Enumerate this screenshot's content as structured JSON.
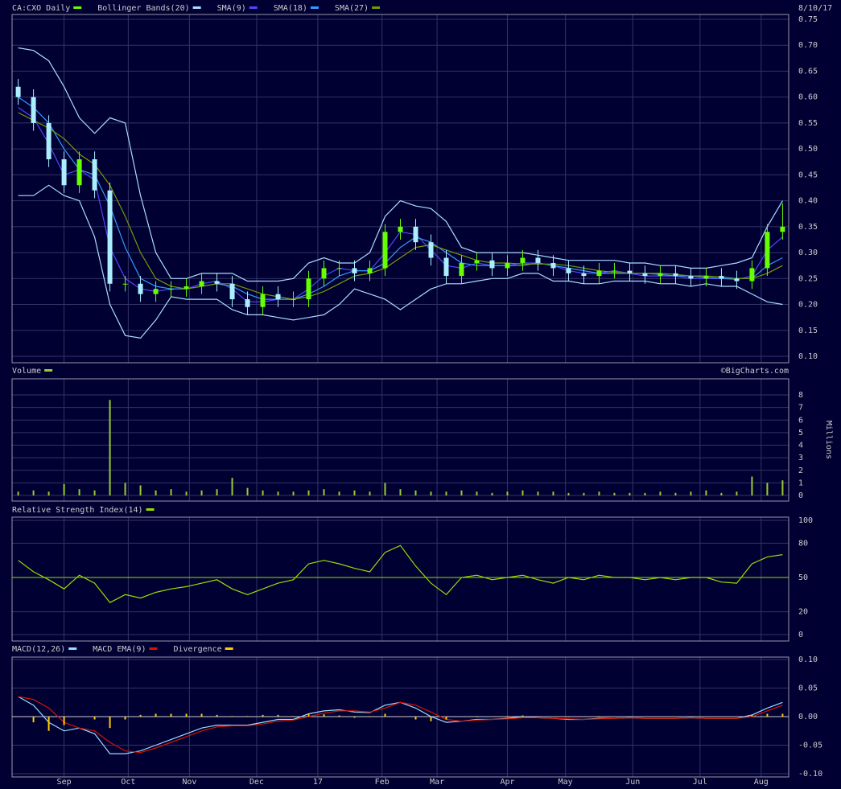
{
  "chart_data": [
    {
      "type": "candlestick",
      "title": "CA:CXO Daily",
      "color": "#66ff00",
      "down_color": "#aaeeff",
      "date": "8/10/17",
      "credit": "©BigCharts.com",
      "x": [
        0,
        5,
        10,
        15,
        20,
        25,
        30,
        35,
        40,
        45,
        50,
        55,
        60,
        65,
        70,
        75,
        80,
        85,
        90,
        95,
        100,
        105,
        110,
        115,
        120,
        125,
        130,
        135,
        140,
        145,
        150,
        155,
        160,
        165,
        170,
        175,
        180,
        185,
        190,
        195,
        200,
        205,
        210,
        215,
        220,
        225,
        230,
        235,
        240,
        245,
        250
      ],
      "xlim": [
        -2,
        252
      ],
      "open": [
        0.62,
        0.6,
        0.55,
        0.48,
        0.43,
        0.48,
        0.42,
        0.24,
        0.24,
        0.22,
        0.23,
        0.23,
        0.235,
        0.245,
        0.24,
        0.21,
        0.195,
        0.22,
        0.21,
        0.21,
        0.25,
        0.27,
        0.27,
        0.26,
        0.27,
        0.34,
        0.35,
        0.32,
        0.29,
        0.255,
        0.28,
        0.285,
        0.27,
        0.28,
        0.29,
        0.28,
        0.27,
        0.26,
        0.255,
        0.265,
        0.265,
        0.26,
        0.255,
        0.26,
        0.255,
        0.25,
        0.255,
        0.25,
        0.245,
        0.27,
        0.34
      ],
      "high": [
        0.635,
        0.615,
        0.565,
        0.495,
        0.495,
        0.495,
        0.435,
        0.255,
        0.255,
        0.245,
        0.245,
        0.25,
        0.26,
        0.26,
        0.255,
        0.225,
        0.235,
        0.235,
        0.225,
        0.265,
        0.285,
        0.285,
        0.285,
        0.285,
        0.355,
        0.365,
        0.365,
        0.335,
        0.305,
        0.295,
        0.3,
        0.3,
        0.295,
        0.305,
        0.305,
        0.295,
        0.285,
        0.275,
        0.28,
        0.28,
        0.28,
        0.275,
        0.275,
        0.275,
        0.27,
        0.27,
        0.27,
        0.265,
        0.285,
        0.355,
        0.395
      ],
      "low": [
        0.585,
        0.535,
        0.465,
        0.415,
        0.415,
        0.405,
        0.225,
        0.225,
        0.205,
        0.205,
        0.215,
        0.215,
        0.22,
        0.225,
        0.195,
        0.18,
        0.18,
        0.195,
        0.195,
        0.195,
        0.235,
        0.255,
        0.245,
        0.245,
        0.255,
        0.325,
        0.305,
        0.275,
        0.24,
        0.24,
        0.265,
        0.255,
        0.255,
        0.265,
        0.265,
        0.255,
        0.245,
        0.24,
        0.24,
        0.25,
        0.245,
        0.24,
        0.24,
        0.24,
        0.235,
        0.235,
        0.235,
        0.23,
        0.23,
        0.255,
        0.325
      ],
      "close": [
        0.6,
        0.55,
        0.48,
        0.43,
        0.48,
        0.42,
        0.24,
        0.24,
        0.22,
        0.23,
        0.23,
        0.235,
        0.245,
        0.24,
        0.21,
        0.195,
        0.22,
        0.21,
        0.21,
        0.25,
        0.27,
        0.27,
        0.26,
        0.27,
        0.34,
        0.35,
        0.32,
        0.29,
        0.255,
        0.28,
        0.285,
        0.27,
        0.28,
        0.29,
        0.28,
        0.27,
        0.26,
        0.255,
        0.265,
        0.265,
        0.26,
        0.255,
        0.26,
        0.255,
        0.25,
        0.255,
        0.25,
        0.245,
        0.27,
        0.34,
        0.35
      ],
      "bands": {
        "name": "Bollinger Bands(20)",
        "color": "#aaddff",
        "upper": [
          0.695,
          0.69,
          0.67,
          0.62,
          0.56,
          0.53,
          0.56,
          0.55,
          0.41,
          0.3,
          0.25,
          0.25,
          0.26,
          0.26,
          0.26,
          0.245,
          0.245,
          0.245,
          0.25,
          0.28,
          0.29,
          0.28,
          0.28,
          0.3,
          0.37,
          0.4,
          0.39,
          0.385,
          0.36,
          0.31,
          0.3,
          0.3,
          0.3,
          0.3,
          0.295,
          0.29,
          0.285,
          0.285,
          0.285,
          0.285,
          0.28,
          0.28,
          0.275,
          0.275,
          0.27,
          0.27,
          0.275,
          0.28,
          0.29,
          0.35,
          0.4
        ],
        "lower": [
          0.41,
          0.41,
          0.43,
          0.41,
          0.4,
          0.33,
          0.2,
          0.14,
          0.135,
          0.17,
          0.215,
          0.21,
          0.21,
          0.21,
          0.19,
          0.18,
          0.18,
          0.175,
          0.17,
          0.175,
          0.18,
          0.2,
          0.23,
          0.22,
          0.21,
          0.19,
          0.21,
          0.23,
          0.24,
          0.24,
          0.245,
          0.25,
          0.25,
          0.26,
          0.26,
          0.245,
          0.245,
          0.24,
          0.24,
          0.245,
          0.245,
          0.245,
          0.24,
          0.24,
          0.235,
          0.24,
          0.235,
          0.235,
          0.22,
          0.205,
          0.2
        ]
      },
      "series": [
        {
          "name": "SMA(9)",
          "color": "#5544ff",
          "values": [
            0.58,
            0.56,
            0.51,
            0.45,
            0.46,
            0.44,
            0.31,
            0.25,
            0.23,
            0.225,
            0.23,
            0.23,
            0.24,
            0.245,
            0.23,
            0.205,
            0.205,
            0.21,
            0.21,
            0.23,
            0.255,
            0.27,
            0.265,
            0.265,
            0.3,
            0.34,
            0.335,
            0.305,
            0.275,
            0.27,
            0.28,
            0.275,
            0.275,
            0.28,
            0.28,
            0.275,
            0.265,
            0.26,
            0.26,
            0.265,
            0.26,
            0.255,
            0.255,
            0.255,
            0.25,
            0.25,
            0.25,
            0.248,
            0.255,
            0.305,
            0.33
          ]
        },
        {
          "name": "SMA(18)",
          "color": "#3399ff",
          "values": [
            0.6,
            0.58,
            0.55,
            0.5,
            0.46,
            0.45,
            0.39,
            0.31,
            0.25,
            0.235,
            0.23,
            0.23,
            0.235,
            0.24,
            0.235,
            0.22,
            0.21,
            0.21,
            0.21,
            0.22,
            0.235,
            0.255,
            0.265,
            0.265,
            0.28,
            0.31,
            0.33,
            0.32,
            0.3,
            0.28,
            0.275,
            0.275,
            0.275,
            0.275,
            0.28,
            0.275,
            0.27,
            0.265,
            0.26,
            0.26,
            0.26,
            0.26,
            0.258,
            0.255,
            0.255,
            0.252,
            0.25,
            0.25,
            0.25,
            0.275,
            0.29
          ]
        },
        {
          "name": "SMA(27)",
          "color": "#779900",
          "values": [
            0.57,
            0.555,
            0.54,
            0.52,
            0.49,
            0.47,
            0.43,
            0.37,
            0.3,
            0.25,
            0.235,
            0.23,
            0.235,
            0.24,
            0.24,
            0.23,
            0.22,
            0.215,
            0.21,
            0.215,
            0.225,
            0.24,
            0.255,
            0.26,
            0.27,
            0.29,
            0.31,
            0.315,
            0.305,
            0.295,
            0.285,
            0.28,
            0.28,
            0.278,
            0.278,
            0.278,
            0.275,
            0.27,
            0.265,
            0.262,
            0.26,
            0.26,
            0.26,
            0.258,
            0.255,
            0.255,
            0.253,
            0.25,
            0.25,
            0.26,
            0.275
          ]
        }
      ],
      "ylim": [
        0.1,
        0.75
      ],
      "yticks": [
        {
          "value": 0.1,
          "label": "0.10"
        },
        0.15,
        {
          "value": 0.2,
          "label": "0.20"
        },
        0.25,
        {
          "value": 0.3,
          "label": "0.30"
        },
        0.35,
        {
          "value": 0.4,
          "label": "0.40"
        },
        0.45,
        {
          "value": 0.5,
          "label": "0.50"
        },
        0.55,
        {
          "value": 0.6,
          "label": "0.60"
        },
        0.65,
        {
          "value": 0.7,
          "label": "0.70"
        },
        0.75
      ],
      "grid": true
    },
    {
      "type": "bar",
      "title": "Volume",
      "color": "#99cc33",
      "ylabel": "Millions",
      "x": [
        0,
        5,
        10,
        15,
        20,
        25,
        30,
        35,
        40,
        45,
        50,
        55,
        60,
        65,
        70,
        75,
        80,
        85,
        90,
        95,
        100,
        105,
        110,
        115,
        120,
        125,
        130,
        135,
        140,
        145,
        150,
        155,
        160,
        165,
        170,
        175,
        180,
        185,
        190,
        195,
        200,
        205,
        210,
        215,
        220,
        225,
        230,
        235,
        240,
        245,
        250
      ],
      "xlim": [
        -2,
        252
      ],
      "values": [
        0.3,
        0.4,
        0.3,
        0.9,
        0.5,
        0.4,
        7.6,
        1.0,
        0.8,
        0.4,
        0.5,
        0.3,
        0.4,
        0.5,
        1.4,
        0.6,
        0.4,
        0.3,
        0.3,
        0.4,
        0.5,
        0.3,
        0.4,
        0.3,
        1.0,
        0.5,
        0.4,
        0.3,
        0.3,
        0.4,
        0.3,
        0.2,
        0.3,
        0.4,
        0.3,
        0.3,
        0.2,
        0.2,
        0.3,
        0.2,
        0.2,
        0.2,
        0.3,
        0.2,
        0.3,
        0.4,
        0.2,
        0.3,
        1.5,
        1.0,
        1.2
      ],
      "ylim": [
        0,
        8
      ],
      "yticks": [
        0,
        1,
        2,
        3,
        4,
        5,
        6,
        7,
        8
      ],
      "grid": true
    },
    {
      "type": "line",
      "title": "Relative Strength Index(14)",
      "color": "#99dd00",
      "x": [
        0,
        5,
        10,
        15,
        20,
        25,
        30,
        35,
        40,
        45,
        50,
        55,
        60,
        65,
        70,
        75,
        80,
        85,
        90,
        95,
        100,
        105,
        110,
        115,
        120,
        125,
        130,
        135,
        140,
        145,
        150,
        155,
        160,
        165,
        170,
        175,
        180,
        185,
        190,
        195,
        200,
        205,
        210,
        215,
        220,
        225,
        230,
        235,
        240,
        245,
        250
      ],
      "xlim": [
        -2,
        252
      ],
      "values": [
        65,
        55,
        48,
        40,
        52,
        45,
        28,
        35,
        32,
        37,
        40,
        42,
        45,
        48,
        40,
        35,
        40,
        45,
        48,
        62,
        65,
        62,
        58,
        55,
        72,
        78,
        60,
        45,
        35,
        50,
        52,
        48,
        50,
        52,
        48,
        45,
        50,
        48,
        52,
        50,
        50,
        48,
        50,
        48,
        50,
        50,
        46,
        45,
        62,
        68,
        70
      ],
      "ylim": [
        0,
        100
      ],
      "yticks": [
        0,
        20,
        50,
        80,
        100
      ],
      "reference_line": 50,
      "grid": true
    },
    {
      "type": "macd",
      "x": [
        0,
        5,
        10,
        15,
        20,
        25,
        30,
        35,
        40,
        45,
        50,
        55,
        60,
        65,
        70,
        75,
        80,
        85,
        90,
        95,
        100,
        105,
        110,
        115,
        120,
        125,
        130,
        135,
        140,
        145,
        150,
        155,
        160,
        165,
        170,
        175,
        180,
        185,
        190,
        195,
        200,
        205,
        210,
        215,
        220,
        225,
        230,
        235,
        240,
        245,
        250
      ],
      "xlim": [
        -2,
        252
      ],
      "series": [
        {
          "name": "MACD(12,26)",
          "color": "#99ddff",
          "values": [
            0.035,
            0.02,
            -0.01,
            -0.025,
            -0.02,
            -0.03,
            -0.065,
            -0.065,
            -0.06,
            -0.05,
            -0.04,
            -0.03,
            -0.02,
            -0.015,
            -0.015,
            -0.015,
            -0.01,
            -0.005,
            -0.005,
            0.005,
            0.01,
            0.012,
            0.008,
            0.007,
            0.02,
            0.025,
            0.015,
            0,
            -0.01,
            -0.008,
            -0.005,
            -0.005,
            -0.003,
            0,
            -0.002,
            -0.003,
            -0.005,
            -0.005,
            -0.003,
            -0.003,
            -0.002,
            -0.003,
            -0.003,
            -0.003,
            -0.002,
            -0.003,
            -0.003,
            -0.003,
            0.003,
            0.015,
            0.025
          ]
        },
        {
          "name": "MACD EMA(9)",
          "color": "#dd1100",
          "values": [
            0.035,
            0.03,
            0.015,
            -0.01,
            -0.02,
            -0.025,
            -0.045,
            -0.06,
            -0.063,
            -0.055,
            -0.045,
            -0.035,
            -0.025,
            -0.018,
            -0.016,
            -0.016,
            -0.013,
            -0.008,
            -0.006,
            0,
            0.006,
            0.01,
            0.01,
            0.008,
            0.015,
            0.025,
            0.02,
            0.008,
            -0.005,
            -0.008,
            -0.006,
            -0.005,
            -0.004,
            -0.002,
            -0.002,
            -0.003,
            -0.004,
            -0.005,
            -0.004,
            -0.003,
            -0.002,
            -0.003,
            -0.003,
            -0.003,
            -0.002,
            -0.003,
            -0.003,
            -0.003,
            0,
            0.01,
            0.02
          ]
        },
        {
          "name": "Divergence",
          "color": "#ffcc00",
          "kind": "bar",
          "values": [
            0,
            -0.01,
            -0.025,
            -0.015,
            0,
            -0.005,
            -0.02,
            -0.005,
            0.003,
            0.005,
            0.005,
            0.005,
            0.005,
            0.003,
            0.001,
            0.001,
            0.003,
            0.003,
            0.001,
            0.005,
            0.004,
            0.002,
            -0.002,
            -0.001,
            0.005,
            0,
            -0.005,
            -0.008,
            -0.005,
            0,
            0.001,
            0,
            0.001,
            0.002,
            0,
            0,
            -0.001,
            0,
            0.001,
            0,
            0,
            0,
            0,
            0,
            0,
            0,
            0,
            0,
            0.003,
            0.005,
            0.005
          ]
        }
      ],
      "ylim": [
        -0.1,
        0.1
      ],
      "yticks": [
        {
          "value": -0.1,
          "label": "-0.10"
        },
        -0.05,
        {
          "value": 0,
          "label": "0.00"
        },
        0.05,
        {
          "value": 0.1,
          "label": "0.10"
        }
      ],
      "reference_line": 0,
      "grid": true,
      "xticks": [
        {
          "value": 15,
          "label": "Sep"
        },
        {
          "value": 36,
          "label": "Oct"
        },
        {
          "value": 56,
          "label": "Nov"
        },
        {
          "value": 78,
          "label": "Dec"
        },
        {
          "value": 98,
          "label": "17"
        },
        {
          "value": 119,
          "label": "Feb"
        },
        {
          "value": 137,
          "label": "Mar"
        },
        {
          "value": 160,
          "label": "Apr"
        },
        {
          "value": 179,
          "label": "May"
        },
        {
          "value": 201,
          "label": "Jun"
        },
        {
          "value": 223,
          "label": "Jul"
        },
        {
          "value": 243,
          "label": "Aug"
        }
      ]
    }
  ]
}
